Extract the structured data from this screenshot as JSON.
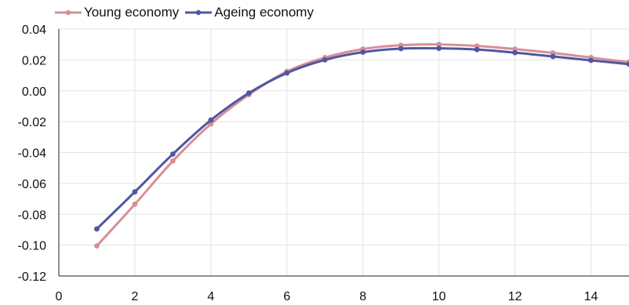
{
  "colors": {
    "young": "#d98e97",
    "ageing": "#4f57a1",
    "grid": "#e3e3e3",
    "axis": "#222222"
  },
  "chart_data": {
    "type": "line",
    "title": "",
    "xlabel": "",
    "ylabel": "",
    "xlim": [
      0,
      15
    ],
    "ylim": [
      -0.12,
      0.04
    ],
    "x_ticks": [
      "0",
      "2",
      "4",
      "6",
      "8",
      "10",
      "12",
      "14"
    ],
    "y_ticks": [
      "0.04",
      "0.02",
      "0.00",
      "-0.02",
      "-0.04",
      "-0.06",
      "-0.08",
      "-0.10",
      "-0.12"
    ],
    "grid": true,
    "legend_position": "top-left",
    "x": [
      1,
      2,
      3,
      4,
      5,
      6,
      7,
      8,
      9,
      10,
      11,
      12,
      13,
      14,
      15
    ],
    "series": [
      {
        "name": "Young economy",
        "color": "#d98e97",
        "values": [
          -0.1005,
          -0.0735,
          -0.0455,
          -0.0215,
          -0.0025,
          0.0125,
          0.0215,
          0.027,
          0.0295,
          0.03,
          0.029,
          0.027,
          0.0245,
          0.0215,
          0.0185
        ]
      },
      {
        "name": "Ageing economy",
        "color": "#4f57a1",
        "values": [
          -0.0895,
          -0.0655,
          -0.041,
          -0.019,
          -0.0015,
          0.0115,
          0.02,
          0.025,
          0.0273,
          0.0275,
          0.0267,
          0.0247,
          0.0222,
          0.0197,
          0.0172
        ]
      }
    ]
  }
}
